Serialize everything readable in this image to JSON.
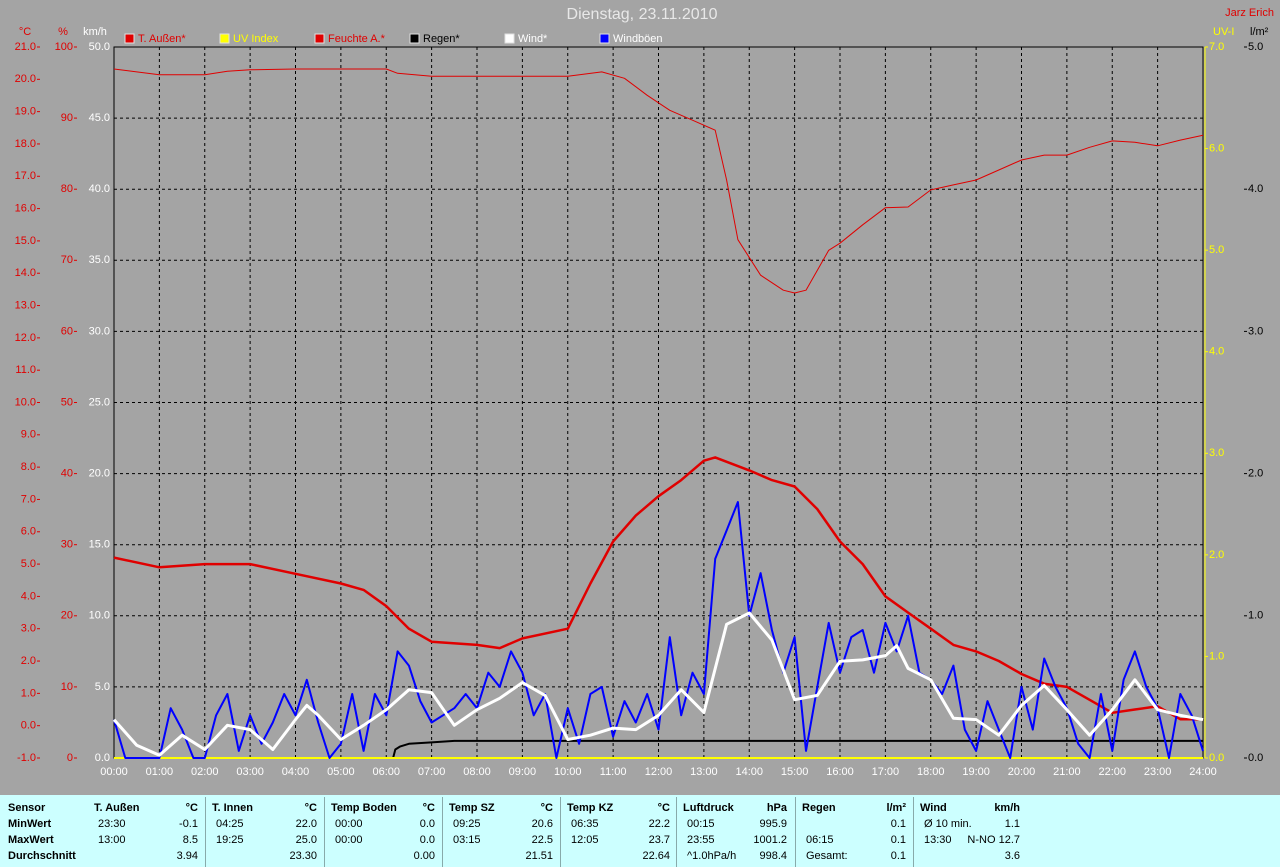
{
  "chart_data": {
    "type": "line",
    "title": "Dienstag, 23.11.2010",
    "author": "Jarz Erich",
    "grid": true,
    "xlim": [
      0,
      24
    ],
    "xticks": [
      {
        "value": 0,
        "label": "00:00"
      },
      {
        "value": 1,
        "label": "01:00"
      },
      {
        "value": 2,
        "label": "02:00"
      },
      {
        "value": 3,
        "label": "03:00"
      },
      {
        "value": 4,
        "label": "04:00"
      },
      {
        "value": 5,
        "label": "05:00"
      },
      {
        "value": 6,
        "label": "06:00"
      },
      {
        "value": 7,
        "label": "07:00"
      },
      {
        "value": 8,
        "label": "08:00"
      },
      {
        "value": 9,
        "label": "09:00"
      },
      {
        "value": 10,
        "label": "10:00"
      },
      {
        "value": 11,
        "label": "11:00"
      },
      {
        "value": 12,
        "label": "12:00"
      },
      {
        "value": 13,
        "label": "13:00"
      },
      {
        "value": 14,
        "label": "14:00"
      },
      {
        "value": 15,
        "label": "15:00"
      },
      {
        "value": 16,
        "label": "16:00"
      },
      {
        "value": 17,
        "label": "17:00"
      },
      {
        "value": 18,
        "label": "18:00"
      },
      {
        "value": 19,
        "label": "19:00"
      },
      {
        "value": 20,
        "label": "20:00"
      },
      {
        "value": 21,
        "label": "21:00"
      },
      {
        "value": 22,
        "label": "22:00"
      },
      {
        "value": 23,
        "label": "23:00"
      },
      {
        "value": 24,
        "label": "24:00"
      }
    ],
    "ylabel": "km/h",
    "ycolor": "#ffffff",
    "ylim": [
      0,
      50
    ],
    "yticks": [
      {
        "value": 0,
        "label": "0.0"
      },
      {
        "value": 5,
        "label": "5.0"
      },
      {
        "value": 10,
        "label": "10.0"
      },
      {
        "value": 15,
        "label": "15.0"
      },
      {
        "value": 20,
        "label": "20.0"
      },
      {
        "value": 25,
        "label": "25.0"
      },
      {
        "value": 30,
        "label": "30.0"
      },
      {
        "value": 35,
        "label": "35.0"
      },
      {
        "value": 40,
        "label": "40.0"
      },
      {
        "value": 45,
        "label": "45.0"
      },
      {
        "value": 50,
        "label": "50.0"
      }
    ],
    "axes": [
      {
        "label": "°C",
        "color": "#e00000",
        "lim": [
          -1,
          21
        ],
        "ticks": [
          {
            "value": -1,
            "label": "-1.0"
          },
          {
            "value": 0,
            "label": "0.0"
          },
          {
            "value": 1,
            "label": "1.0"
          },
          {
            "value": 2,
            "label": "2.0"
          },
          {
            "value": 3,
            "label": "3.0"
          },
          {
            "value": 4,
            "label": "4.0"
          },
          {
            "value": 5,
            "label": "5.0"
          },
          {
            "value": 6,
            "label": "6.0"
          },
          {
            "value": 7,
            "label": "7.0"
          },
          {
            "value": 8,
            "label": "8.0"
          },
          {
            "value": 9,
            "label": "9.0"
          },
          {
            "value": 10,
            "label": "10.0"
          },
          {
            "value": 11,
            "label": "11.0"
          },
          {
            "value": 12,
            "label": "12.0"
          },
          {
            "value": 13,
            "label": "13.0"
          },
          {
            "value": 14,
            "label": "14.0"
          },
          {
            "value": 15,
            "label": "15.0"
          },
          {
            "value": 16,
            "label": "16.0"
          },
          {
            "value": 17,
            "label": "17.0"
          },
          {
            "value": 18,
            "label": "18.0"
          },
          {
            "value": 19,
            "label": "19.0"
          },
          {
            "value": 20,
            "label": "20.0"
          },
          {
            "value": 21,
            "label": "21.0"
          }
        ]
      },
      {
        "label": "%",
        "color": "#e00000",
        "lim": [
          0,
          100
        ],
        "ticks": [
          0,
          10,
          20,
          30,
          40,
          50,
          60,
          70,
          80,
          90,
          100
        ]
      },
      {
        "label": "UV-I",
        "color": "#ffff00",
        "lim": [
          0,
          7
        ],
        "ticks": [
          {
            "value": 0,
            "label": "0.0"
          },
          {
            "value": 1,
            "label": "1.0"
          },
          {
            "value": 2,
            "label": "2.0"
          },
          {
            "value": 3,
            "label": "3.0"
          },
          {
            "value": 4,
            "label": "4.0"
          },
          {
            "value": 5,
            "label": "5.0"
          },
          {
            "value": 6,
            "label": "6.0"
          },
          {
            "value": 7,
            "label": "7.0"
          }
        ]
      },
      {
        "label": "l/m²",
        "color": "#000000",
        "lim": [
          0,
          5
        ],
        "ticks": [
          {
            "value": 0,
            "label": "0.0"
          },
          {
            "value": 1,
            "label": "1.0"
          },
          {
            "value": 2,
            "label": "2.0"
          },
          {
            "value": 3,
            "label": "3.0"
          },
          {
            "value": 4,
            "label": "4.0"
          },
          {
            "value": 5,
            "label": "5.0"
          }
        ]
      }
    ],
    "series": [
      {
        "name": "T. Außen*",
        "color": "#e00000",
        "label_color": "#e00000",
        "line_width": 2.5,
        "axis": "°C",
        "x": [
          0,
          1,
          2,
          3,
          4,
          5,
          5.5,
          6,
          6.5,
          7,
          8,
          8.5,
          9,
          10,
          10.5,
          11,
          11.5,
          12,
          12.5,
          13,
          13.25,
          14,
          14.5,
          15,
          15.5,
          16,
          16.5,
          17,
          17.5,
          18,
          18.5,
          19,
          19.5,
          20,
          20.5,
          21,
          21.5,
          22,
          22.5,
          23,
          23.5,
          24
        ],
        "values": [
          5.2,
          4.9,
          5.0,
          5.0,
          4.7,
          4.4,
          4.2,
          3.7,
          3.0,
          2.6,
          2.5,
          2.4,
          2.7,
          3.0,
          4.4,
          5.7,
          6.5,
          7.1,
          7.6,
          8.2,
          8.3,
          7.9,
          7.6,
          7.4,
          6.7,
          5.7,
          5.0,
          4.0,
          3.5,
          3.0,
          2.5,
          2.3,
          2.0,
          1.6,
          1.3,
          1.2,
          0.8,
          0.4,
          0.5,
          0.6,
          0.2,
          0.2
        ]
      },
      {
        "name": "UV Index",
        "color": "#ffff00",
        "label_color": "#ffff00",
        "line_width": 2,
        "axis": "UV-I",
        "x": [
          0,
          24
        ],
        "values": [
          0,
          0
        ]
      },
      {
        "name": "Feuchte A.*",
        "color": "#e00000",
        "label_color": "#e00000",
        "line_width": 1,
        "axis": "%",
        "x": [
          0,
          0.5,
          1,
          2,
          2.5,
          3,
          4,
          6,
          6.25,
          7,
          10,
          10.75,
          11.25,
          11.75,
          12.25,
          12.75,
          13.25,
          13.5,
          13.75,
          14.25,
          14.75,
          15,
          15.25,
          15.75,
          16,
          16.5,
          17,
          17.5,
          18,
          18.5,
          19,
          19.5,
          20,
          20.5,
          21,
          21.5,
          22,
          22.5,
          23,
          23.5,
          24
        ],
        "values": [
          96.9,
          96.5,
          96.1,
          96.1,
          96.6,
          96.8,
          96.9,
          96.9,
          96.3,
          95.9,
          95.9,
          96.5,
          95.6,
          93.2,
          91.1,
          89.7,
          88.3,
          81.3,
          72.9,
          67.9,
          65.8,
          65.4,
          65.8,
          71.4,
          72.4,
          75.0,
          77.4,
          77.5,
          79.9,
          80.6,
          81.3,
          82.7,
          84.1,
          84.8,
          84.8,
          85.9,
          86.8,
          86.6,
          86.1,
          86.9,
          87.6
        ]
      },
      {
        "name": "Regen*",
        "color": "#000000",
        "label_color": "#000000",
        "line_width": 2,
        "axis": "l/m²",
        "x": [
          0,
          6.15,
          6.2,
          6.3,
          6.5,
          7,
          7.5,
          24
        ],
        "values": [
          0,
          0,
          0.06,
          0.08,
          0.1,
          0.11,
          0.12,
          0.12
        ]
      },
      {
        "name": "Windböen",
        "color": "#0000ff",
        "label_color": "#ffffff",
        "line_width": 2,
        "x": [
          0,
          0.25,
          0.5,
          0.75,
          1,
          1.25,
          1.5,
          1.75,
          2,
          2.25,
          2.5,
          2.75,
          3,
          3.25,
          3.5,
          3.75,
          4,
          4.25,
          4.5,
          4.75,
          5,
          5.25,
          5.5,
          5.75,
          6,
          6.25,
          6.5,
          6.75,
          7,
          7.25,
          7.5,
          7.75,
          8,
          8.25,
          8.5,
          8.75,
          9,
          9.25,
          9.5,
          9.75,
          10,
          10.25,
          10.5,
          10.75,
          11,
          11.25,
          11.5,
          11.75,
          12,
          12.25,
          12.5,
          12.75,
          13,
          13.25,
          13.5,
          13.75,
          14,
          14.25,
          14.5,
          14.75,
          15,
          15.25,
          15.5,
          15.75,
          16,
          16.25,
          16.5,
          16.75,
          17,
          17.25,
          17.5,
          17.75,
          18,
          18.25,
          18.5,
          18.75,
          19,
          19.25,
          19.5,
          19.75,
          20,
          20.25,
          20.5,
          20.75,
          21,
          21.25,
          21.5,
          21.75,
          22,
          22.25,
          22.5,
          22.75,
          23,
          23.25,
          23.5,
          23.75,
          24
        ],
        "values": [
          2.7,
          0,
          0,
          0,
          0,
          3.5,
          2.0,
          0,
          0,
          3.0,
          4.5,
          0.5,
          3.0,
          1.0,
          2.5,
          4.5,
          3.0,
          5.5,
          2.5,
          0,
          1.0,
          4.5,
          0.5,
          4.5,
          3.0,
          7.5,
          6.5,
          4.0,
          2.5,
          3.0,
          3.5,
          4.5,
          3.5,
          6.0,
          5.0,
          7.5,
          6.0,
          3.0,
          4.5,
          0,
          3.5,
          1.0,
          4.5,
          5.0,
          1.5,
          4.0,
          2.5,
          4.5,
          2.0,
          8.5,
          3.0,
          6.0,
          4.5,
          14.0,
          16.0,
          18.0,
          10.0,
          13.0,
          9.0,
          6.0,
          8.5,
          0.5,
          5.0,
          9.5,
          6.0,
          8.5,
          9.0,
          6.0,
          9.5,
          7.5,
          10.0,
          6.0,
          5.5,
          4.5,
          6.5,
          2.0,
          0.5,
          4.0,
          2.0,
          0,
          5.0,
          2.0,
          7.0,
          5.0,
          3.5,
          1.0,
          0,
          4.5,
          0.5,
          5.5,
          7.5,
          5.0,
          3.5,
          0,
          4.5,
          3.0,
          0.5
        ]
      },
      {
        "name": "Wind*",
        "color": "#ffffff",
        "label_color": "#ffffff",
        "line_width": 3,
        "x": [
          0,
          0.5,
          1,
          1.5,
          2,
          2.5,
          3,
          3.5,
          4,
          4.25,
          4.5,
          5,
          5.5,
          6,
          6.5,
          7,
          7.5,
          8,
          8.5,
          9,
          9.5,
          10,
          10.5,
          11,
          11.5,
          12,
          12.5,
          13,
          13.5,
          14,
          14.5,
          15,
          15.5,
          16,
          16.5,
          17,
          17.25,
          17.5,
          18,
          18.5,
          19,
          19.5,
          20,
          20.5,
          21,
          21.5,
          22,
          22.5,
          23,
          23.5,
          24
        ],
        "values": [
          2.7,
          0.9,
          0.2,
          1.6,
          0.6,
          2.3,
          2.0,
          0.6,
          2.7,
          3.7,
          3.0,
          1.3,
          2.3,
          3.4,
          4.8,
          4.6,
          2.3,
          3.4,
          4.2,
          5.3,
          4.4,
          1.3,
          1.6,
          2.1,
          2.0,
          3.0,
          4.8,
          3.2,
          9.4,
          10.2,
          8.3,
          4.1,
          4.4,
          6.8,
          6.9,
          7.2,
          7.9,
          6.3,
          5.5,
          2.8,
          2.7,
          1.6,
          3.7,
          5.1,
          3.4,
          1.6,
          3.4,
          5.5,
          3.4,
          3.0,
          2.7
        ]
      }
    ],
    "legend_order": [
      "T. Außen*",
      "UV Index",
      "Feuchte A.*",
      "Regen*",
      "Wind*",
      "Windböen"
    ]
  },
  "stats": {
    "row_labels": [
      "Sensor",
      "MinWert",
      "MaxWert",
      "Durchschnitt"
    ],
    "groups": [
      {
        "name": "T. Außen",
        "unit": "°C",
        "rows": [
          {
            "time": "23:30",
            "value": "-0.1"
          },
          {
            "time": "13:00",
            "value": "8.5"
          },
          {
            "value": "3.94"
          }
        ]
      },
      {
        "name": "T. Innen",
        "unit": "°C",
        "rows": [
          {
            "time": "04:25",
            "value": "22.0"
          },
          {
            "time": "19:25",
            "value": "25.0"
          },
          {
            "value": "23.30"
          }
        ]
      },
      {
        "name": "Temp Boden",
        "unit": "°C",
        "rows": [
          {
            "time": "00:00",
            "value": "0.0"
          },
          {
            "time": "00:00",
            "value": "0.0"
          },
          {
            "value": "0.00"
          }
        ]
      },
      {
        "name": "Temp SZ",
        "unit": "°C",
        "rows": [
          {
            "time": "09:25",
            "value": "20.6"
          },
          {
            "time": "03:15",
            "value": "22.5"
          },
          {
            "value": "21.51"
          }
        ]
      },
      {
        "name": "Temp KZ",
        "unit": "°C",
        "rows": [
          {
            "time": "06:35",
            "value": "22.2"
          },
          {
            "time": "12:05",
            "value": "23.7"
          },
          {
            "value": "22.64"
          }
        ]
      },
      {
        "name": "Luftdruck",
        "unit": "hPa",
        "rows": [
          {
            "time": "00:15",
            "value": "995.9"
          },
          {
            "time": "23:55",
            "value": "1001.2"
          },
          {
            "time": "^1.0hPa/h",
            "value": "998.4"
          }
        ]
      },
      {
        "name": "Regen",
        "unit": "l/m²",
        "rows": [
          {
            "value": "0.1"
          },
          {
            "time": "06:15",
            "value": "0.1"
          },
          {
            "time": "Gesamt:",
            "value": "0.1"
          }
        ]
      },
      {
        "name": "Wind",
        "unit": "km/h",
        "rows": [
          {
            "time": "Ø 10 min.",
            "value": "1.1"
          },
          {
            "time": "13:30",
            "value": "N-NO 12.7"
          },
          {
            "value": "3.6"
          }
        ]
      }
    ]
  }
}
